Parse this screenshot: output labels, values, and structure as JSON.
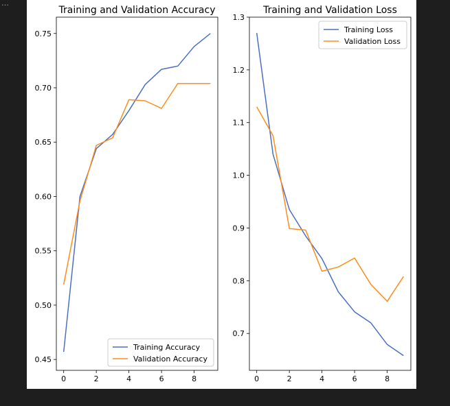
{
  "cell_marker": "…",
  "chart_data": [
    {
      "type": "line",
      "title": "Training and Validation Accuracy",
      "x": [
        0,
        1,
        2,
        3,
        4,
        5,
        6,
        7,
        8,
        9
      ],
      "xlim": [
        -0.45,
        9.45
      ],
      "ylim": [
        0.44,
        0.765
      ],
      "xticks": [
        "0",
        "2",
        "4",
        "6",
        "8"
      ],
      "yticks": [
        "0.45",
        "0.50",
        "0.55",
        "0.60",
        "0.65",
        "0.70",
        "0.75"
      ],
      "legend_position": "lower-right",
      "grid": false,
      "series": [
        {
          "name": "Training Accuracy",
          "color": "#4a6fc0",
          "values": [
            0.457,
            0.6,
            0.644,
            0.657,
            0.679,
            0.703,
            0.717,
            0.72,
            0.738,
            0.75
          ]
        },
        {
          "name": "Validation Accuracy",
          "color": "#ff8c1a",
          "values": [
            0.519,
            0.596,
            0.647,
            0.654,
            0.689,
            0.688,
            0.681,
            0.704,
            0.704,
            0.704
          ]
        }
      ]
    },
    {
      "type": "line",
      "title": "Training and Validation Loss",
      "x": [
        0,
        1,
        2,
        3,
        4,
        5,
        6,
        7,
        8,
        9
      ],
      "xlim": [
        -0.45,
        9.45
      ],
      "ylim": [
        0.63,
        1.3
      ],
      "xticks": [
        "0",
        "2",
        "4",
        "6",
        "8"
      ],
      "yticks": [
        "0.7",
        "0.8",
        "0.9",
        "1.0",
        "1.1",
        "1.2",
        "1.3"
      ],
      "legend_position": "upper-right",
      "grid": false,
      "series": [
        {
          "name": "Training Loss",
          "color": "#4a6fc0",
          "values": [
            1.27,
            1.04,
            0.935,
            0.885,
            0.842,
            0.779,
            0.741,
            0.72,
            0.679,
            0.658
          ]
        },
        {
          "name": "Validation Loss",
          "color": "#ff8c1a",
          "values": [
            1.13,
            1.075,
            0.899,
            0.896,
            0.818,
            0.826,
            0.843,
            0.793,
            0.761,
            0.808
          ]
        }
      ]
    }
  ]
}
